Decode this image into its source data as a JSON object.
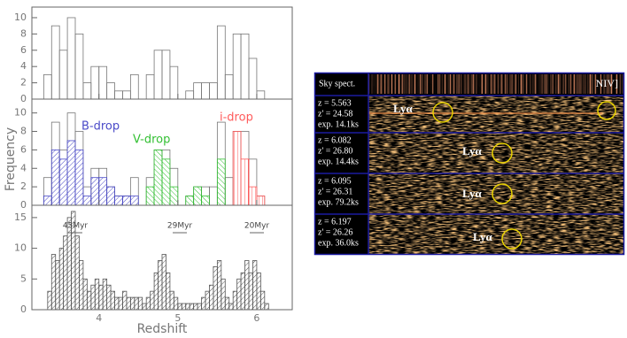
{
  "chart_data": [
    {
      "type": "histogram",
      "bins": [
        3.3,
        3.4,
        3.5,
        3.6,
        3.7,
        3.8,
        3.9,
        4.0,
        4.1,
        4.2,
        4.3,
        4.4,
        4.5,
        4.6,
        4.7,
        4.8,
        4.9,
        5.0,
        5.1,
        5.2,
        5.3,
        5.4,
        5.5,
        5.6,
        5.7,
        5.8,
        5.9,
        6.0,
        6.1,
        6.2,
        6.3
      ],
      "series": [
        {
          "color": "#777777",
          "values": [
            3,
            9,
            6,
            10,
            8,
            2,
            4,
            4,
            2,
            1,
            1,
            3,
            0,
            3,
            6,
            6,
            4,
            0,
            1,
            2,
            2,
            2,
            9,
            3,
            8,
            8,
            5,
            1,
            0,
            0
          ]
        }
      ],
      "ylim": [
        0,
        11.3
      ],
      "yticks": [
        0,
        2,
        4,
        6,
        8,
        10
      ]
    },
    {
      "type": "histogram",
      "ylabel": "Frequency",
      "bins": [
        3.3,
        3.4,
        3.5,
        3.6,
        3.7,
        3.8,
        3.9,
        4.0,
        4.1,
        4.2,
        4.3,
        4.4,
        4.5,
        4.6,
        4.7,
        4.8,
        4.9,
        5.0,
        5.1,
        5.2,
        5.3,
        5.4,
        5.5,
        5.6,
        5.7,
        5.8,
        5.9,
        6.0,
        6.1,
        6.2,
        6.3
      ],
      "series": [
        {
          "color": "#777777",
          "values": [
            3,
            9,
            6,
            10,
            8,
            2,
            4,
            4,
            2,
            1,
            1,
            3,
            0,
            3,
            6,
            6,
            4,
            0,
            1,
            2,
            2,
            2,
            9,
            3,
            8,
            8,
            5,
            1,
            0,
            0
          ]
        },
        {
          "name": "B-drop",
          "color": "#4a4ac8",
          "values": [
            1,
            6,
            5,
            7,
            6,
            1,
            3,
            3,
            2,
            1,
            1,
            1,
            0,
            0,
            0,
            0,
            0,
            0,
            0,
            0,
            0,
            0,
            0,
            0,
            0,
            0,
            0,
            0,
            0,
            0
          ]
        },
        {
          "name": "V-drop",
          "color": "#33c033",
          "values": [
            0,
            0,
            0,
            0,
            0,
            0,
            0,
            0,
            0,
            0,
            0,
            0,
            0,
            2,
            6,
            5,
            2,
            0,
            1,
            2,
            1,
            0,
            5,
            0,
            0,
            0,
            0,
            0,
            0,
            0
          ]
        },
        {
          "name": "i-drop",
          "color": "#ff5a5a",
          "values": [
            0,
            0,
            0,
            0,
            0,
            0,
            0,
            0,
            0,
            0,
            0,
            0,
            0,
            0,
            0,
            0,
            0,
            0,
            0,
            0,
            0,
            0,
            0,
            0,
            8,
            5,
            2,
            1,
            0,
            0
          ]
        }
      ],
      "ylim": [
        0,
        11.5
      ],
      "yticks": [
        0,
        2,
        4,
        6,
        8,
        10
      ]
    },
    {
      "type": "histogram",
      "xlabel": "Redshift",
      "bins": [
        3.3,
        3.35,
        3.4,
        3.45,
        3.5,
        3.55,
        3.6,
        3.65,
        3.7,
        3.75,
        3.8,
        3.85,
        3.9,
        3.95,
        4,
        4.05,
        4.1,
        4.15,
        4.2,
        4.25,
        4.3,
        4.35,
        4.4,
        4.45,
        4.5,
        4.55,
        4.6,
        4.65,
        4.7,
        4.75,
        4.8,
        4.85,
        4.9,
        4.95,
        5,
        5.05,
        5.1,
        5.15,
        5.2,
        5.25,
        5.3,
        5.35,
        5.4,
        5.45,
        5.5,
        5.55,
        5.6,
        5.65,
        5.7,
        5.75,
        5.8,
        5.85,
        5.9,
        5.95,
        6,
        6.05,
        6.1,
        6.15,
        6.2,
        6.25,
        6.3
      ],
      "series": [
        {
          "color": "#555555",
          "values": [
            0,
            3,
            9,
            8,
            10,
            12,
            15,
            16,
            12,
            8,
            5,
            3,
            4,
            5,
            4,
            5,
            4,
            3,
            2,
            2,
            3,
            2,
            2,
            2,
            2,
            1,
            2,
            3,
            6,
            8,
            9,
            6,
            3,
            2,
            1,
            1,
            1,
            1,
            1,
            1,
            2,
            3,
            4,
            7,
            8,
            5,
            2,
            1,
            3,
            5,
            6,
            8,
            6,
            8,
            6,
            3,
            1,
            0,
            0,
            0
          ]
        }
      ],
      "annotations": [
        "45Myr",
        "29Myr",
        "20Myr"
      ],
      "xlim": [
        3.15,
        6.45
      ],
      "xticks": [
        4,
        5,
        6
      ],
      "ylim": [
        0,
        17
      ],
      "yticks": [
        0,
        5,
        10,
        15
      ]
    }
  ],
  "spectra": {
    "header": "Sky spect.",
    "line_label": "NIV]",
    "rows": [
      {
        "lines": [
          "z = 5.563",
          "z' = 24.58",
          "exp. 14.1ks"
        ],
        "label": "Lyα"
      },
      {
        "lines": [
          "z = 6.082",
          "z' = 26.80",
          "exp. 14.4ks"
        ],
        "label": "Lyα"
      },
      {
        "lines": [
          "z = 6.095",
          "z' = 26.31",
          "exp. 79.2ks"
        ],
        "label": "Lyα"
      },
      {
        "lines": [
          "z = 6.197",
          "z' = 26.26",
          "exp. 36.0ks"
        ],
        "label": "Lyα"
      }
    ]
  }
}
